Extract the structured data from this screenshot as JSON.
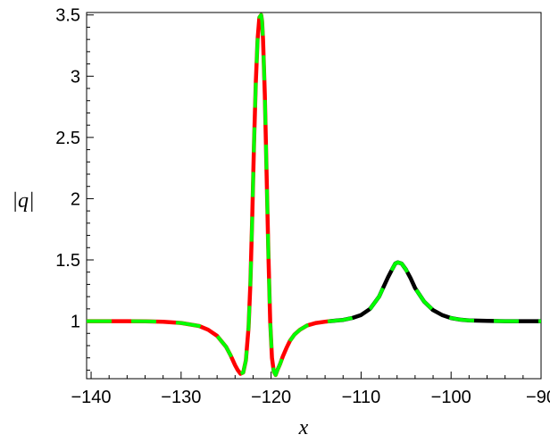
{
  "chart_data": {
    "type": "line",
    "title": "",
    "xlabel": "x",
    "ylabel": "|q|",
    "xlim": [
      -140.5,
      -90
    ],
    "ylim": [
      0.53,
      3.52
    ],
    "xticks": [
      -140,
      -130,
      -120,
      -110,
      -100,
      -90
    ],
    "xtick_labels": [
      "−140",
      "−130",
      "−120",
      "−110",
      "−100",
      "−90"
    ],
    "yticks": [
      1,
      1.5,
      2,
      2.5,
      3,
      3.5
    ],
    "ytick_labels": [
      "1",
      "1.5",
      "2",
      "2.5",
      "3",
      "3.5"
    ],
    "grid": false,
    "legend": "none",
    "colors": {
      "overlay_dashed": "#00ff00",
      "left_segment": "#ff0000",
      "right_segment": "#000000"
    },
    "series": [
      {
        "style": "solid",
        "color": "#ff0000",
        "x": [
          -140.5,
          -138,
          -136,
          -134,
          -132,
          -130,
          -128,
          -127,
          -126,
          -125,
          -124.5,
          -124,
          -123.7,
          -123.4,
          -123.1,
          -122.8,
          -122.5,
          -122.3,
          -122.1,
          -121.9,
          -121.7,
          -121.5,
          -121.3,
          -121.1,
          -121.0,
          -120.9,
          -120.7,
          -120.5,
          -120.3,
          -120.1,
          -119.9,
          -119.7,
          -119.5,
          -119.3,
          -119.0,
          -118.7,
          -118.3,
          -117.9,
          -117.4,
          -116.8,
          -116.0,
          -115.0,
          -114.0,
          -113.5
        ],
        "y": [
          1.0,
          1.0,
          1.0,
          0.998,
          0.995,
          0.985,
          0.96,
          0.93,
          0.88,
          0.79,
          0.72,
          0.64,
          0.6,
          0.57,
          0.58,
          0.68,
          0.95,
          1.3,
          1.85,
          2.45,
          2.95,
          3.3,
          3.48,
          3.5,
          3.45,
          3.3,
          2.85,
          2.2,
          1.55,
          1.0,
          0.7,
          0.59,
          0.56,
          0.6,
          0.65,
          0.71,
          0.78,
          0.84,
          0.89,
          0.93,
          0.965,
          0.985,
          0.995,
          1.0
        ]
      },
      {
        "style": "solid",
        "color": "#000000",
        "x": [
          -113.5,
          -112,
          -111,
          -110,
          -109,
          -108,
          -107.5,
          -107,
          -106.5,
          -106.2,
          -105.9,
          -105.5,
          -105,
          -104.5,
          -104,
          -103,
          -102,
          -101,
          -100,
          -99,
          -98,
          -96,
          -94,
          -92,
          -90
        ],
        "y": [
          1.0,
          1.01,
          1.025,
          1.05,
          1.1,
          1.2,
          1.28,
          1.36,
          1.43,
          1.47,
          1.48,
          1.47,
          1.42,
          1.35,
          1.27,
          1.16,
          1.09,
          1.05,
          1.025,
          1.012,
          1.006,
          1.002,
          1.0,
          1.0,
          1.0
        ]
      },
      {
        "style": "dashed",
        "color": "#00ff00",
        "x": [
          -140.5,
          -138,
          -136,
          -134,
          -132,
          -130,
          -128,
          -127,
          -126,
          -125,
          -124.5,
          -124,
          -123.7,
          -123.4,
          -123.1,
          -122.8,
          -122.5,
          -122.3,
          -122.1,
          -121.9,
          -121.7,
          -121.5,
          -121.3,
          -121.1,
          -121.0,
          -120.9,
          -120.7,
          -120.5,
          -120.3,
          -120.1,
          -119.9,
          -119.7,
          -119.5,
          -119.3,
          -119.0,
          -118.7,
          -118.3,
          -117.9,
          -117.4,
          -116.8,
          -116.0,
          -115.0,
          -114.0,
          -113.5,
          -112,
          -111,
          -110,
          -109,
          -108,
          -107.5,
          -107,
          -106.5,
          -106.2,
          -105.9,
          -105.5,
          -105,
          -104.5,
          -104,
          -103,
          -102,
          -101,
          -100,
          -99,
          -98,
          -96,
          -94,
          -92,
          -90
        ],
        "y": [
          1.0,
          1.0,
          1.0,
          0.998,
          0.995,
          0.985,
          0.96,
          0.93,
          0.88,
          0.79,
          0.72,
          0.64,
          0.6,
          0.57,
          0.58,
          0.68,
          0.95,
          1.3,
          1.85,
          2.45,
          2.95,
          3.3,
          3.48,
          3.5,
          3.45,
          3.3,
          2.85,
          2.2,
          1.55,
          1.0,
          0.7,
          0.59,
          0.56,
          0.6,
          0.65,
          0.71,
          0.78,
          0.84,
          0.89,
          0.93,
          0.965,
          0.985,
          0.995,
          1.0,
          1.01,
          1.025,
          1.05,
          1.1,
          1.2,
          1.28,
          1.36,
          1.43,
          1.47,
          1.48,
          1.47,
          1.42,
          1.35,
          1.27,
          1.16,
          1.09,
          1.05,
          1.025,
          1.012,
          1.006,
          1.002,
          1.0,
          1.0,
          1.0
        ]
      }
    ]
  }
}
